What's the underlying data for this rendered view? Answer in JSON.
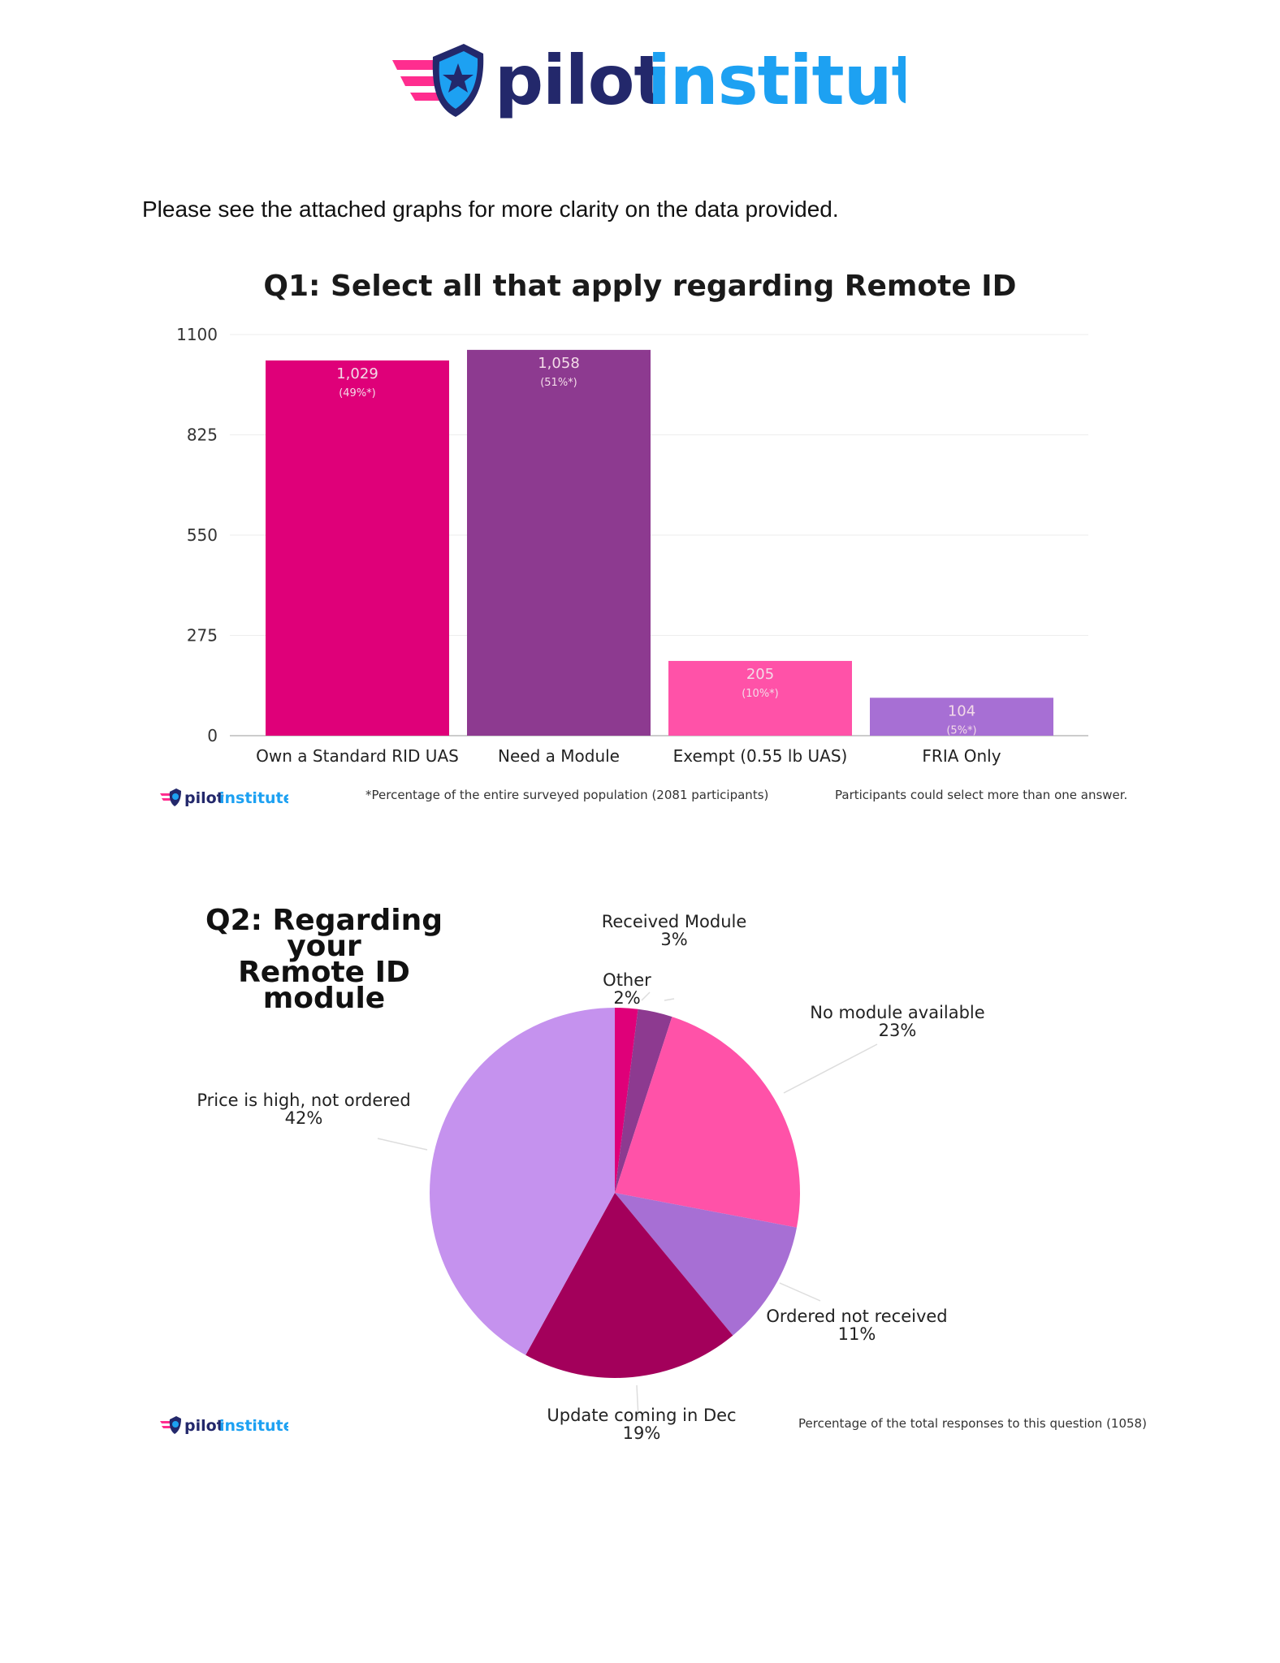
{
  "header": {
    "brand_part1": "pilot",
    "brand_part2": "institute",
    "intro": "Please see the attached graphs for more clarity on the data provided."
  },
  "colors": {
    "navy": "#23286b",
    "blue": "#1da1f2",
    "pink": "#ff2d8f"
  },
  "chart_data": [
    {
      "type": "bar",
      "title": "Q1: Select all that apply regarding Remote ID",
      "categories": [
        "Own a Standard RID UAS",
        "Need a Module",
        "Exempt (0.55 lb UAS)",
        "FRIA Only"
      ],
      "values": [
        1029,
        1058,
        205,
        104
      ],
      "value_labels": [
        "1,029",
        "1,058",
        "205",
        "104"
      ],
      "percent_labels": [
        "(49%*)",
        "(51%*)",
        "(10%*)",
        "(5%*)"
      ],
      "colors": [
        "#df0079",
        "#8d3a90",
        "#ff52a8",
        "#a76fd4"
      ],
      "yticks": [
        0,
        275,
        550,
        825,
        1100
      ],
      "ytick_labels": [
        "0",
        "275",
        "550",
        "825",
        "1100"
      ],
      "ylim": [
        0,
        1100
      ],
      "grid": true,
      "footnote_left": "*Percentage of the entire surveyed population (2081 participants)",
      "footnote_right": "Participants could select more than one answer."
    },
    {
      "type": "pie",
      "title_line1": "Q2: Regarding your",
      "title_line2": "Remote ID module",
      "slices": [
        {
          "label": "Other",
          "value": 2,
          "value_label": "2%",
          "color": "#df0079"
        },
        {
          "label": "Received Module",
          "value": 3,
          "value_label": "3%",
          "color": "#8d3a90"
        },
        {
          "label": "No module available",
          "value": 23,
          "value_label": "23%",
          "color": "#ff52a8"
        },
        {
          "label": "Ordered not received",
          "value": 11,
          "value_label": "11%",
          "color": "#a76fd4"
        },
        {
          "label": "Update coming in Dec",
          "value": 19,
          "value_label": "19%",
          "color": "#a3005b"
        },
        {
          "label": "Price is high, not ordered",
          "value": 42,
          "value_label": "42%",
          "color": "#c592ee"
        }
      ],
      "footnote": "Percentage of the total responses to this question (1058)"
    }
  ]
}
